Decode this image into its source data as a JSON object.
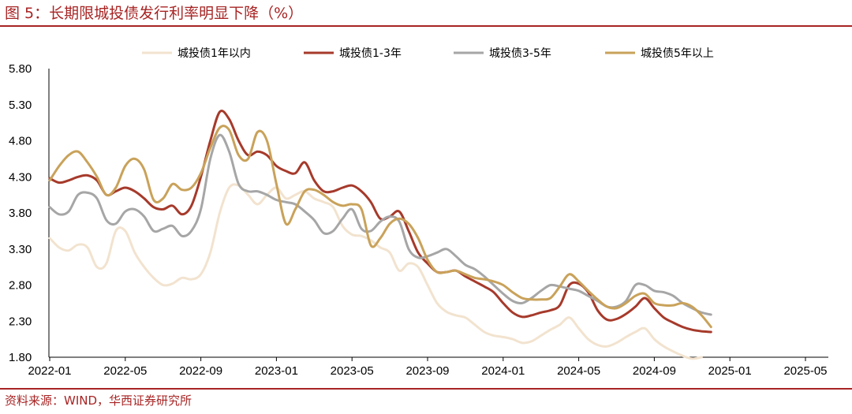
{
  "figure": {
    "title": "图 5：长期限城投债发行利率明显下降（%）",
    "source": "资料来源：WIND，华西证券研究所"
  },
  "colors": {
    "accent": "#a82424",
    "series": [
      "#f2e3cf",
      "#a63a2b",
      "#a6a6a6",
      "#c9a25a"
    ]
  },
  "chart_data": {
    "type": "line",
    "title": "长期限城投债发行利率明显下降（%）",
    "xlabel": "",
    "ylabel": "",
    "ylim": [
      1.8,
      5.8
    ],
    "yticks": [
      "1.80",
      "2.30",
      "2.80",
      "3.30",
      "3.80",
      "4.30",
      "4.80",
      "5.30",
      "5.80"
    ],
    "xticks": [
      "2022-01",
      "2022-05",
      "2022-09",
      "2023-01",
      "2023-05",
      "2023-09",
      "2024-01",
      "2024-05",
      "2024-09",
      "2025-01",
      "2025-05"
    ],
    "x_start": "2022-01",
    "x_step_months": 0.5,
    "legend_position": "top",
    "grid": false,
    "series": [
      {
        "name": "城投债1年以内",
        "values": [
          3.45,
          3.32,
          3.28,
          3.36,
          3.32,
          3.05,
          3.1,
          3.55,
          3.55,
          3.25,
          3.05,
          2.9,
          2.8,
          2.82,
          2.9,
          2.88,
          2.95,
          3.25,
          3.8,
          4.15,
          4.18,
          4.05,
          3.92,
          4.05,
          4.15,
          4.0,
          4.05,
          4.1,
          4.0,
          3.95,
          3.88,
          3.62,
          3.5,
          3.48,
          3.42,
          3.32,
          3.25,
          3.0,
          3.1,
          3.05,
          2.8,
          2.55,
          2.43,
          2.38,
          2.35,
          2.25,
          2.15,
          2.1,
          2.08,
          2.05,
          2.0,
          2.02,
          2.1,
          2.18,
          2.25,
          2.35,
          2.2,
          2.05,
          1.97,
          1.95,
          2.0,
          2.08,
          2.15,
          2.2,
          2.05,
          1.95,
          1.88,
          1.82,
          1.78,
          1.8
        ]
      },
      {
        "name": "城投债1-3年",
        "values": [
          4.28,
          4.22,
          4.25,
          4.3,
          4.32,
          4.25,
          4.05,
          4.1,
          4.15,
          4.1,
          4.0,
          3.88,
          3.85,
          3.9,
          3.78,
          3.9,
          4.3,
          4.8,
          5.2,
          5.1,
          4.8,
          4.6,
          4.65,
          4.6,
          4.45,
          4.38,
          4.35,
          4.5,
          4.25,
          4.1,
          4.1,
          4.15,
          4.18,
          4.1,
          3.95,
          3.72,
          3.75,
          3.82,
          3.55,
          3.25,
          3.1,
          2.98,
          2.98,
          3.0,
          2.92,
          2.85,
          2.78,
          2.7,
          2.55,
          2.42,
          2.36,
          2.38,
          2.42,
          2.45,
          2.52,
          2.8,
          2.82,
          2.7,
          2.45,
          2.32,
          2.33,
          2.4,
          2.5,
          2.62,
          2.48,
          2.35,
          2.28,
          2.22,
          2.18,
          2.16,
          2.15
        ]
      },
      {
        "name": "城投债3-5年",
        "values": [
          3.88,
          3.78,
          3.82,
          4.05,
          4.08,
          4.0,
          3.7,
          3.65,
          3.82,
          3.85,
          3.75,
          3.55,
          3.58,
          3.62,
          3.48,
          3.55,
          3.85,
          4.55,
          4.88,
          4.65,
          4.2,
          4.1,
          4.1,
          4.05,
          3.98,
          3.95,
          3.92,
          3.82,
          3.7,
          3.52,
          3.55,
          3.72,
          3.85,
          3.58,
          3.55,
          3.68,
          3.75,
          3.68,
          3.3,
          3.18,
          3.2,
          3.25,
          3.3,
          3.2,
          3.08,
          3.02,
          2.92,
          2.8,
          2.68,
          2.58,
          2.55,
          2.62,
          2.72,
          2.8,
          2.78,
          2.75,
          2.72,
          2.65,
          2.58,
          2.5,
          2.5,
          2.58,
          2.8,
          2.8,
          2.72,
          2.7,
          2.65,
          2.55,
          2.48,
          2.42,
          2.39
        ]
      },
      {
        "name": "城投债5年以上",
        "values": [
          4.25,
          4.45,
          4.6,
          4.65,
          4.5,
          4.3,
          4.05,
          4.15,
          4.45,
          4.55,
          4.4,
          3.98,
          4.0,
          4.2,
          4.12,
          4.15,
          4.35,
          4.7,
          4.98,
          4.95,
          4.6,
          4.55,
          4.92,
          4.8,
          4.2,
          3.65,
          3.85,
          4.1,
          4.12,
          4.05,
          3.95,
          3.9,
          3.92,
          3.85,
          3.35,
          3.45,
          3.65,
          3.72,
          3.65,
          3.45,
          3.15,
          2.98,
          2.98,
          3.0,
          2.95,
          2.9,
          2.88,
          2.85,
          2.8,
          2.7,
          2.62,
          2.6,
          2.6,
          2.62,
          2.78,
          2.95,
          2.85,
          2.72,
          2.6,
          2.5,
          2.48,
          2.55,
          2.65,
          2.68,
          2.55,
          2.52,
          2.52,
          2.55,
          2.5,
          2.38,
          2.22
        ]
      }
    ]
  }
}
